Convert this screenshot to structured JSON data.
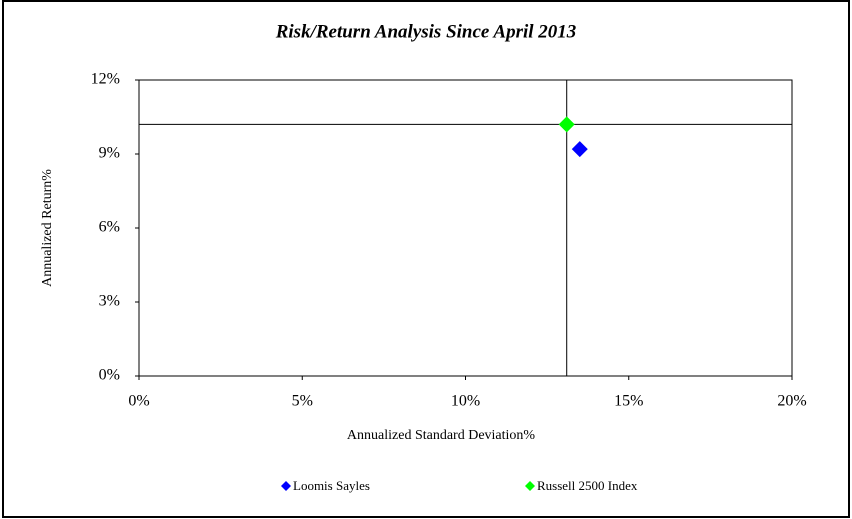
{
  "chart_data": {
    "type": "scatter",
    "title": "Risk/Return Analysis Since April 2013",
    "x_label": "Annualized Standard Deviation%",
    "y_label": "Annualized Return%",
    "xlim": [
      0,
      20
    ],
    "xticks": [
      {
        "value": 0,
        "label": "0%"
      },
      {
        "value": 5,
        "label": "5%"
      },
      {
        "value": 10,
        "label": "10%"
      },
      {
        "value": 15,
        "label": "15%"
      },
      {
        "value": 20,
        "label": "20%"
      }
    ],
    "ylim": [
      0,
      12
    ],
    "yticks": [
      {
        "value": 0,
        "label": "0%"
      },
      {
        "value": 3,
        "label": "3%"
      },
      {
        "value": 6,
        "label": "6%"
      },
      {
        "value": 9,
        "label": "9%"
      },
      {
        "value": 12,
        "label": "12%"
      }
    ],
    "series": [
      {
        "name": "Loomis Sayles",
        "color": "#0000ff",
        "x": [
          13.5
        ],
        "values": [
          9.2
        ]
      },
      {
        "name": "Russell 2500 Index",
        "color": "#00ff00",
        "x": [
          13.1
        ],
        "values": [
          10.2
        ]
      }
    ]
  }
}
